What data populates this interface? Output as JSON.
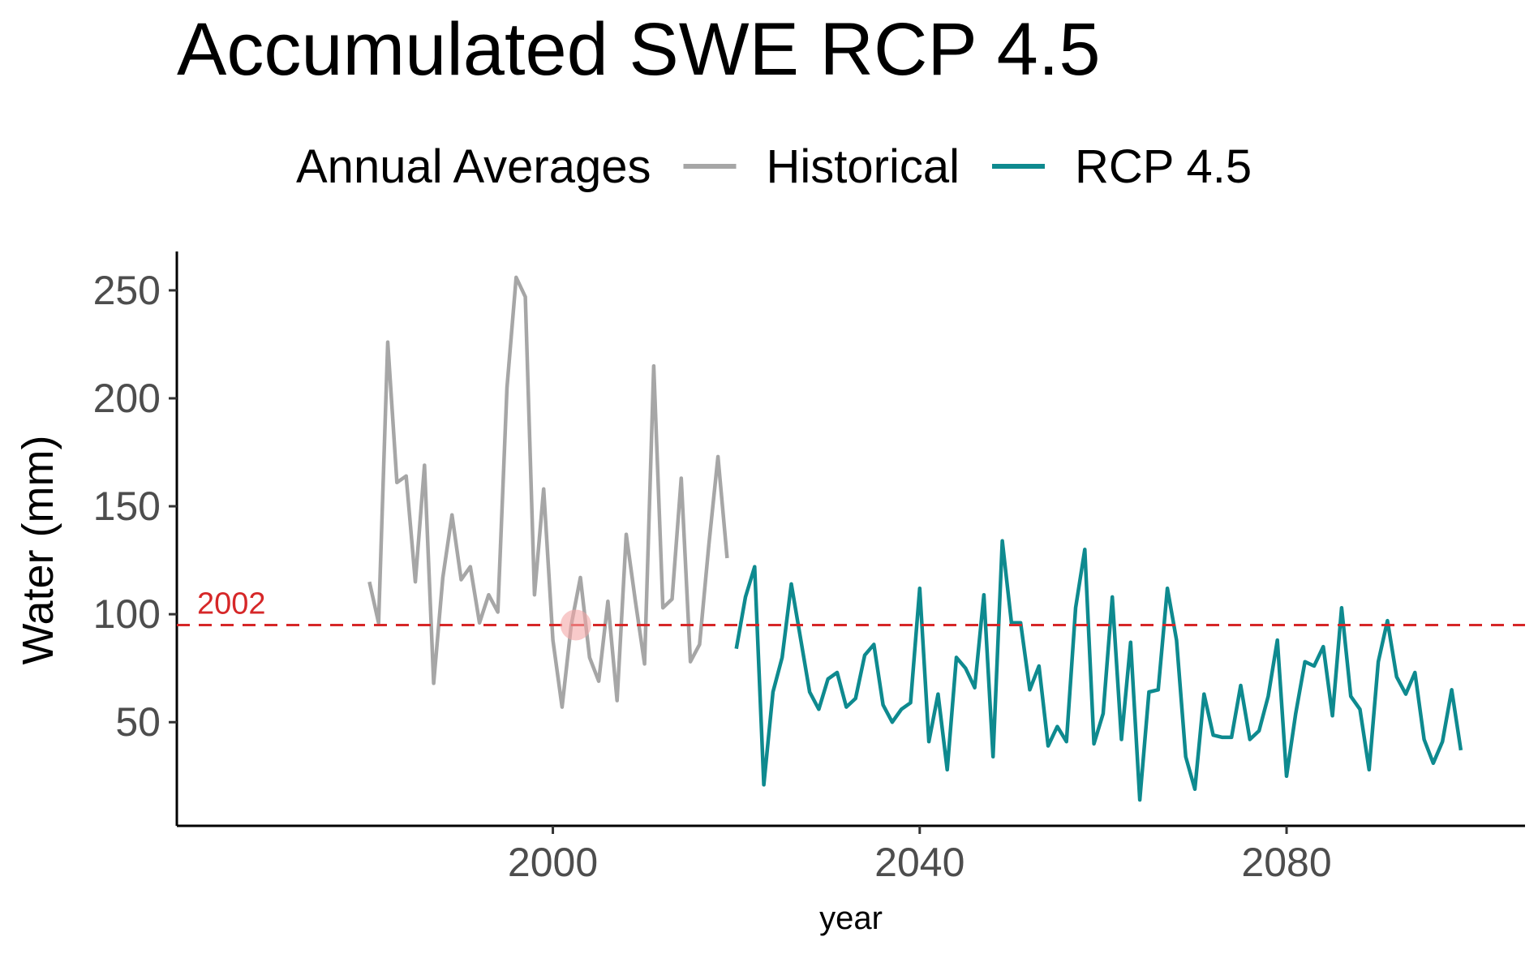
{
  "chart_data": {
    "type": "line",
    "title": "Accumulated SWE RCP 4.5",
    "xlabel": "year",
    "ylabel": "Water (mm)",
    "legend": {
      "title": "Annual Averages",
      "position": "top",
      "entries": [
        {
          "name": "Historical",
          "color": "#a6a6a6"
        },
        {
          "name": "RCP 4.5",
          "color": "#0e8a8f"
        }
      ]
    },
    "xlim": [
      1959,
      2106
    ],
    "ylim": [
      2,
      268
    ],
    "x_ticks": [
      2000,
      2040,
      2080
    ],
    "y_ticks": [
      50,
      100,
      150,
      200,
      250
    ],
    "grid": false,
    "series": [
      {
        "name": "Historical",
        "color": "#a6a6a6",
        "x": [
          1980,
          1981,
          1982,
          1983,
          1984,
          1985,
          1986,
          1987,
          1988,
          1989,
          1990,
          1991,
          1992,
          1993,
          1994,
          1995,
          1996,
          1997,
          1998,
          1999,
          2000,
          2001,
          2002,
          2003,
          2004,
          2005,
          2006,
          2007,
          2008,
          2009,
          2010,
          2011,
          2012,
          2013,
          2014,
          2015,
          2016,
          2017,
          2018,
          2019
        ],
        "values": [
          115,
          96,
          226,
          161,
          164,
          115,
          169,
          68,
          117,
          146,
          116,
          122,
          96,
          109,
          101,
          205,
          256,
          247,
          109,
          158,
          88,
          57,
          95,
          117,
          80,
          69,
          106,
          60,
          137,
          106,
          77,
          215,
          103,
          107,
          163,
          78,
          86,
          132,
          173,
          126
        ]
      },
      {
        "name": "RCP 4.5",
        "color": "#0e8a8f",
        "x": [
          2020,
          2021,
          2022,
          2023,
          2024,
          2025,
          2026,
          2027,
          2028,
          2029,
          2030,
          2031,
          2032,
          2033,
          2034,
          2035,
          2036,
          2037,
          2038,
          2039,
          2040,
          2041,
          2042,
          2043,
          2044,
          2045,
          2046,
          2047,
          2048,
          2049,
          2050,
          2051,
          2052,
          2053,
          2054,
          2055,
          2056,
          2057,
          2058,
          2059,
          2060,
          2061,
          2062,
          2063,
          2064,
          2065,
          2066,
          2067,
          2068,
          2069,
          2070,
          2071,
          2072,
          2073,
          2074,
          2075,
          2076,
          2077,
          2078,
          2079,
          2080,
          2081,
          2082,
          2083,
          2084,
          2085,
          2086,
          2087,
          2088,
          2089,
          2090,
          2091,
          2092,
          2093,
          2094,
          2095,
          2096,
          2097,
          2098,
          2099
        ],
        "values": [
          84,
          108,
          122,
          21,
          64,
          80,
          114,
          89,
          64,
          56,
          70,
          73,
          57,
          61,
          81,
          86,
          58,
          50,
          56,
          59,
          112,
          41,
          63,
          28,
          80,
          75,
          66,
          109,
          34,
          134,
          96,
          96,
          65,
          76,
          39,
          48,
          41,
          103,
          130,
          40,
          54,
          108,
          42,
          87,
          14,
          64,
          65,
          112,
          88,
          34,
          19,
          63,
          44,
          43,
          43,
          67,
          42,
          46,
          62,
          88,
          25,
          54,
          78,
          76,
          85,
          53,
          103,
          62,
          56,
          28,
          78,
          97,
          71,
          63,
          73,
          42,
          31,
          41,
          65,
          37
        ]
      }
    ],
    "reference_line": {
      "y": 95,
      "color": "#d62728",
      "style": "dashed",
      "label": "2002"
    },
    "highlight_point": {
      "x": 2002.5,
      "y": 95,
      "color": "#f4a6a6"
    }
  }
}
